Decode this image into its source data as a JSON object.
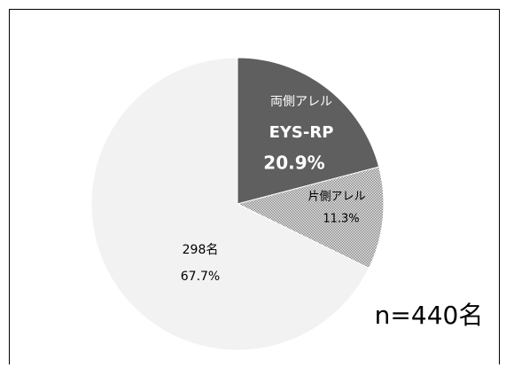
{
  "chart_data": {
    "type": "pie",
    "labels": [
      [
        "両側アレル",
        "EYS-RP"
      ],
      [
        "片側アレル"
      ],
      [
        "298名"
      ]
    ],
    "values": [
      20.9,
      11.3,
      67.7
    ],
    "value_labels": [
      "20.9%",
      "11.3%",
      "67.7%"
    ],
    "colors": [
      "#5f5f5f",
      "#b8b8b8",
      "#f2f2f2"
    ],
    "hatch": [
      false,
      true,
      false
    ],
    "annotation": "n=440名"
  }
}
